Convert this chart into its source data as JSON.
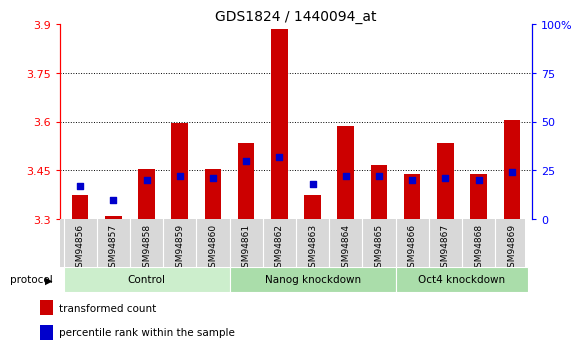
{
  "title": "GDS1824 / 1440094_at",
  "samples": [
    "GSM94856",
    "GSM94857",
    "GSM94858",
    "GSM94859",
    "GSM94860",
    "GSM94861",
    "GSM94862",
    "GSM94863",
    "GSM94864",
    "GSM94865",
    "GSM94866",
    "GSM94867",
    "GSM94868",
    "GSM94869"
  ],
  "transformed_count": [
    3.375,
    3.31,
    3.455,
    3.595,
    3.455,
    3.535,
    3.885,
    3.375,
    3.585,
    3.465,
    3.44,
    3.535,
    3.44,
    3.605
  ],
  "percentile_rank": [
    17,
    10,
    20,
    22,
    21,
    30,
    32,
    18,
    22,
    22,
    20,
    21,
    20,
    24
  ],
  "ylim_left": [
    3.3,
    3.9
  ],
  "ylim_right": [
    0,
    100
  ],
  "yticks_left": [
    3.3,
    3.45,
    3.6,
    3.75,
    3.9
  ],
  "yticks_right": [
    0,
    25,
    50,
    75,
    100
  ],
  "ytick_labels_right": [
    "0",
    "25",
    "50",
    "75",
    "100%"
  ],
  "bar_color": "#cc0000",
  "dot_color": "#0000cc",
  "bar_width": 0.5,
  "dotted_lines": [
    3.45,
    3.6,
    3.75
  ],
  "legend_labels": [
    "transformed count",
    "percentile rank within the sample"
  ],
  "protocol_label": "protocol",
  "group_defs": [
    [
      0,
      4,
      "Control",
      "#cceecc"
    ],
    [
      5,
      9,
      "Nanog knockdown",
      "#aaddaa"
    ],
    [
      10,
      13,
      "Oct4 knockdown",
      "#aaddaa"
    ]
  ]
}
